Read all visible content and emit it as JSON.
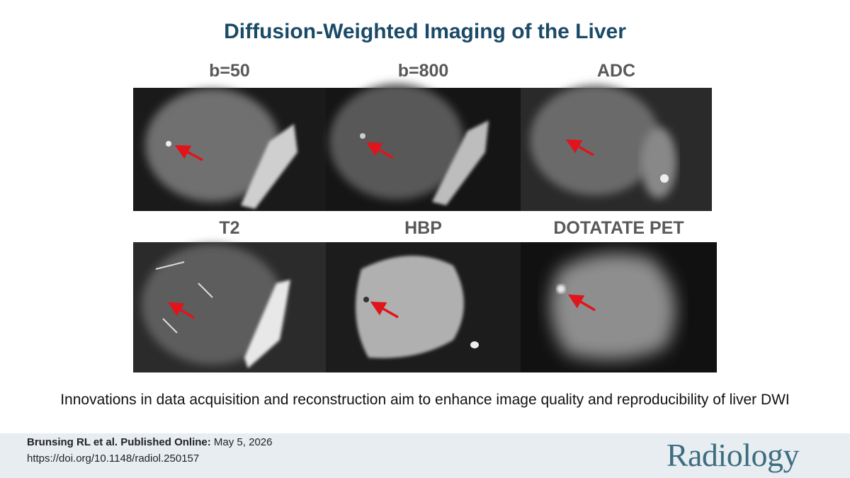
{
  "title": "Diffusion-Weighted Imaging of the Liver",
  "panels": [
    "b=50",
    "b=800",
    "ADC",
    "T2",
    "HBP",
    "DOTATATE PET"
  ],
  "caption": "Innovations in data acquisition and reconstruction aim to enhance image quality and reproducibility of liver DWI",
  "footer": {
    "citation_label": "Brunsing RL et al. Published Online:",
    "date": "May 5, 2026",
    "doi": "https://doi.org/10.1148/radiol.250157",
    "journal": "Radiology"
  }
}
